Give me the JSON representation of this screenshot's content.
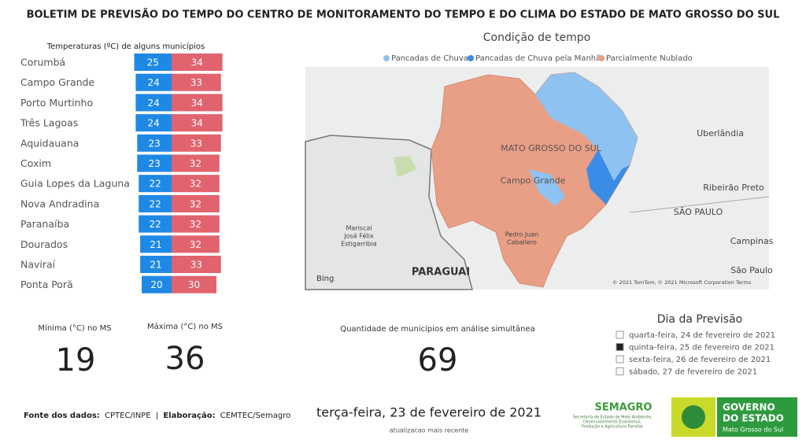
{
  "header": {
    "title": "BOLETIM DE PREVISÃO DO TEMPO DO CENTRO DE MONITORAMENTO DO TEMPO E DO CLIMA DO ESTADO DE MATO GROSSO DO SUL"
  },
  "temperatures": {
    "title": "Temperaturas (ºC) de alguns municípios",
    "min_color": "#1e88e5",
    "max_color": "#e0636e",
    "rows": [
      {
        "name": "Corumbá",
        "min": 25,
        "max": 34
      },
      {
        "name": "Campo Grande",
        "min": 24,
        "max": 33
      },
      {
        "name": "Porto Murtinho",
        "min": 24,
        "max": 34
      },
      {
        "name": "Três Lagoas",
        "min": 24,
        "max": 34
      },
      {
        "name": "Aquidauana",
        "min": 23,
        "max": 33
      },
      {
        "name": "Coxim",
        "min": 23,
        "max": 32
      },
      {
        "name": "Guia Lopes da Laguna",
        "min": 22,
        "max": 32
      },
      {
        "name": "Nova Andradina",
        "min": 22,
        "max": 32
      },
      {
        "name": "Paranaíba",
        "min": 22,
        "max": 32
      },
      {
        "name": "Dourados",
        "min": 21,
        "max": 32
      },
      {
        "name": "Naviraí",
        "min": 21,
        "max": 33
      },
      {
        "name": "Ponta Porã",
        "min": 20,
        "max": 30
      }
    ]
  },
  "map": {
    "title": "Condição de tempo",
    "legend": [
      {
        "name": "Pancadas de Chuva",
        "color": "#8ec2f0"
      },
      {
        "name": "Pancadas de Chuva pela Manhã",
        "color": "#3a8de6"
      },
      {
        "name": "Parcialmente Nublado",
        "color": "#e99f86"
      }
    ],
    "labels": [
      "MATO GROSSO DO SUL",
      "Campo Grande",
      "Uberlândia",
      "Ribeirão Preto",
      "SÃO PAULO",
      "Campinas",
      "São Paulo",
      "Mariscal",
      "José Félix",
      "Estigarribia",
      "PARAGUAI",
      "Pedro Juan",
      "Caballero",
      "Bing",
      "© 2021 TomTom, © 2021 Microsoft Corporation  Terms"
    ]
  },
  "stats": {
    "min": {
      "label": "Mínima (°C) no MS",
      "value": 19
    },
    "max": {
      "label": "Máxima (°C) no MS",
      "value": 36
    },
    "count": {
      "label": "Quantidade de municípios em análise simultânea",
      "value": 69
    }
  },
  "day_selector": {
    "title": "Dia da Previsão",
    "selected": 1,
    "options": [
      "quarta-feira, 24 de fevereiro de 2021",
      "quinta-feira, 25 de fevereiro de 2021",
      "sexta-feira, 26 de fevereiro de 2021",
      "sábado, 27 de fevereiro de 2021"
    ]
  },
  "footer": {
    "source_label": "Fonte dos dados:",
    "source": "CPTEC/INPE",
    "separator": "|",
    "made_label": "Elaboração:",
    "made": "CEMTEC/Semagro",
    "date": "terça-feira, 23 de fevereiro de 2021",
    "date_note": "atualizacao mais recente",
    "semagro": "SEMAGRO",
    "semagro_sub": [
      "Secretaria de Estado de Meio Ambiente,",
      "Desenvolvimento Econômico,",
      "Produção e Agricultura Familiar"
    ],
    "gov": [
      "GOVERNO",
      "DO ESTADO",
      "Mato Grosso do Sul"
    ]
  }
}
